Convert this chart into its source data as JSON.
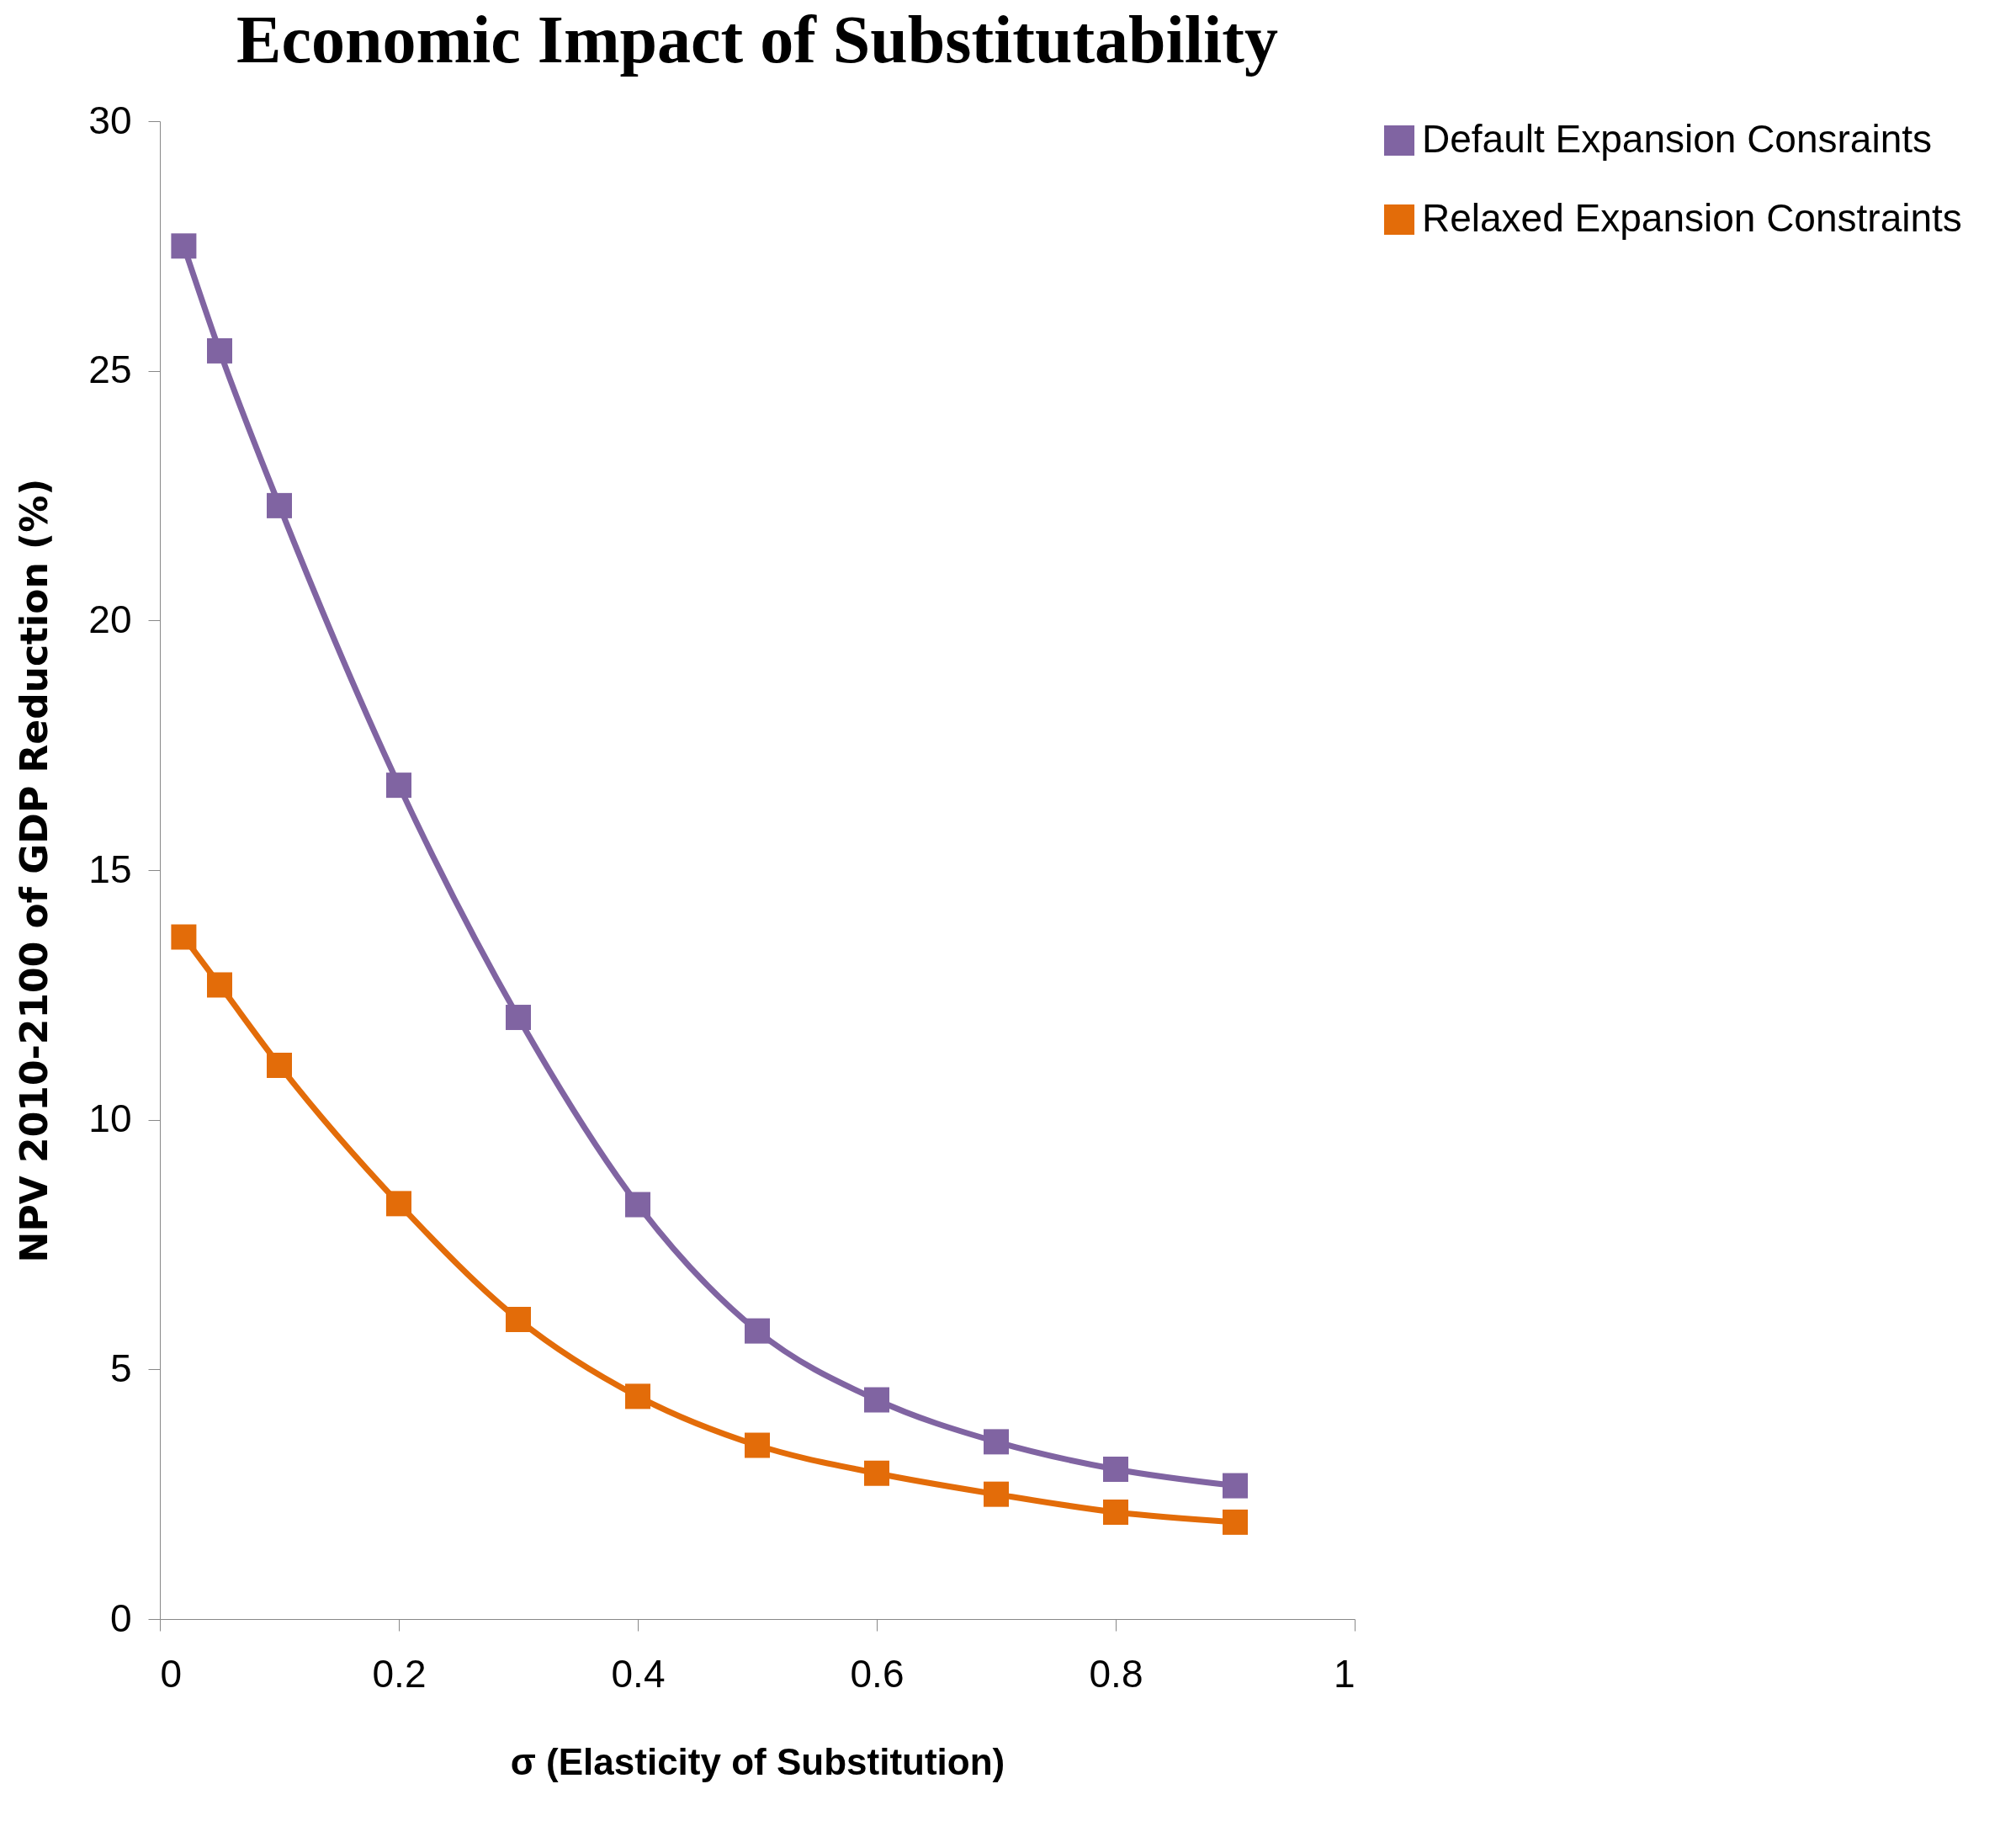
{
  "chart_data": {
    "type": "line",
    "title": "Economic Impact of Substitutability",
    "xlabel": "σ (Elasticity of Substitution)",
    "ylabel": "NPV 2010-2100 of GDP Reduction (%)",
    "x": [
      0.02,
      0.05,
      0.1,
      0.2,
      0.3,
      0.4,
      0.5,
      0.6,
      0.7,
      0.8,
      0.9
    ],
    "series": [
      {
        "name": "Default Expansion Consraints",
        "color": "#8064a2",
        "values": [
          27.5,
          25.4,
          22.3,
          16.7,
          12.05,
          8.3,
          5.77,
          4.39,
          3.55,
          3.0,
          2.67
        ]
      },
      {
        "name": "Relaxed Expansion Constraints",
        "color": "#e36c09",
        "values": [
          13.66,
          12.7,
          11.09,
          8.32,
          6.0,
          4.46,
          3.48,
          2.92,
          2.5,
          2.14,
          1.94
        ]
      }
    ],
    "xlim": [
      0,
      1
    ],
    "xticks": [
      0,
      0.2,
      0.4,
      0.6,
      0.8,
      1
    ],
    "ylim": [
      0,
      30
    ],
    "yticks": [
      0,
      5,
      10,
      15,
      20,
      25,
      30
    ],
    "grid": false,
    "legend": "right",
    "marker": "square",
    "line_style": "solid"
  }
}
